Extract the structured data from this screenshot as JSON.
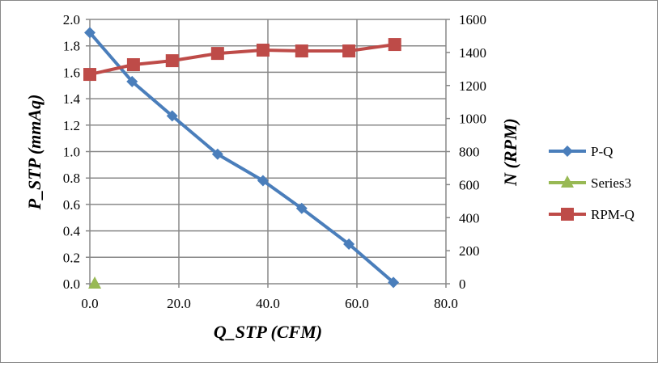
{
  "chart_data": {
    "type": "line",
    "xlabel": "Q_STP (CFM)",
    "ylabel": "P_STP (mmAq)",
    "y2label": "N (RPM)",
    "xlim": [
      0,
      80
    ],
    "ylim": [
      0,
      2
    ],
    "y2lim": [
      0,
      1600
    ],
    "xticks": [
      "0.0",
      "20.0",
      "40.0",
      "60.0",
      "80.0"
    ],
    "yticks": [
      "0.0",
      "0.2",
      "0.4",
      "0.6",
      "0.8",
      "1.0",
      "1.2",
      "1.4",
      "1.6",
      "1.8",
      "2.0"
    ],
    "y2ticks": [
      "0",
      "200",
      "400",
      "600",
      "800",
      "1000",
      "1200",
      "1400",
      "1600"
    ],
    "grid": true,
    "legend_position": "right",
    "series": [
      {
        "name": "P-Q",
        "axis": "left",
        "color": "#4a7ebb",
        "marker": "diamond",
        "x": [
          0,
          9.5,
          18.5,
          28.7,
          38.9,
          47.6,
          58.2,
          68.2
        ],
        "y": [
          1.9,
          1.53,
          1.27,
          0.98,
          0.78,
          0.57,
          0.3,
          0.01
        ]
      },
      {
        "name": "Series3",
        "axis": "left",
        "color": "#98b954",
        "marker": "triangle",
        "x": [
          1.1
        ],
        "y": [
          0
        ]
      },
      {
        "name": "RPM-Q",
        "axis": "right",
        "color": "#be4b48",
        "marker": "square",
        "x": [
          0,
          9.8,
          18.5,
          28.7,
          38.9,
          47.6,
          58.2,
          68.5
        ],
        "y": [
          1267,
          1326,
          1350,
          1394,
          1414,
          1409,
          1409,
          1448
        ]
      }
    ]
  }
}
